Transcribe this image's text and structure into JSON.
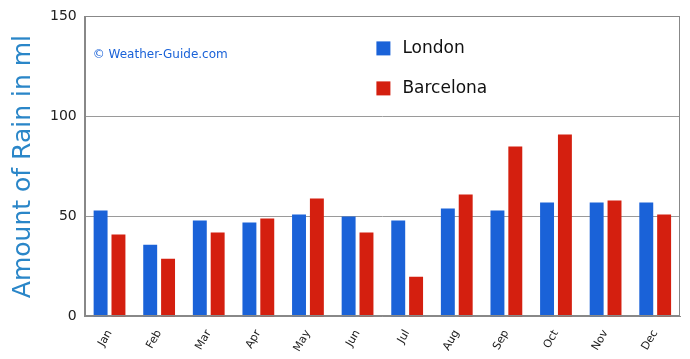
{
  "chart_data": {
    "type": "bar",
    "y_label": "Amount of Rain in ml",
    "annotations": [
      "© Weather-Guide.com"
    ],
    "categories": [
      "Jan",
      "Feb",
      "Mar",
      "Apr",
      "May",
      "Jun",
      "Jul",
      "Aug",
      "Sep",
      "Oct",
      "Nov",
      "Dec"
    ],
    "series": [
      {
        "name": "London",
        "color": "#1a62d8",
        "values": [
          53,
          36,
          48,
          47,
          51,
          50,
          48,
          54,
          53,
          57,
          57,
          57
        ]
      },
      {
        "name": "Barcelona",
        "color": "#d41f0f",
        "values": [
          41,
          29,
          42,
          49,
          59,
          42,
          20,
          61,
          85,
          91,
          58,
          51
        ]
      }
    ],
    "ylim": [
      0,
      150
    ],
    "yticks": [
      0,
      50,
      100,
      150
    ],
    "grid": true,
    "legend": "top"
  }
}
